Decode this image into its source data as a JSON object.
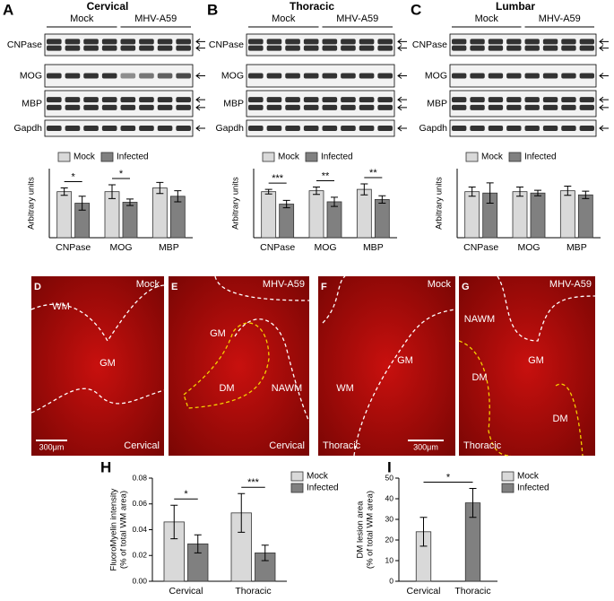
{
  "chart_data": [
    {
      "type": "bar",
      "panel": "A",
      "title": "Cervical",
      "ylabel": [
        "Arbitrary units"
      ],
      "categories": [
        "CNPase",
        "MOG",
        "MBP"
      ],
      "ylim": [
        0,
        1.5
      ],
      "legend": "top",
      "series": [
        {
          "name": "Mock",
          "color": "#d9d9d9",
          "values": [
            1.0,
            1.0,
            1.08
          ],
          "errors": [
            0.08,
            0.15,
            0.12
          ]
        },
        {
          "name": "Infected",
          "color": "#808080",
          "values": [
            0.75,
            0.77,
            0.9
          ],
          "errors": [
            0.15,
            0.07,
            0.12
          ]
        }
      ],
      "annotations": [
        {
          "text": "*",
          "category": "CNPase"
        },
        {
          "text": "*",
          "category": "MOG"
        }
      ]
    },
    {
      "type": "bar",
      "panel": "B",
      "title": "Thoracic",
      "ylabel": [
        "Arbitrary units"
      ],
      "categories": [
        "CNPase",
        "MOG",
        "MBP"
      ],
      "ylim": [
        0,
        1.5
      ],
      "legend": "top",
      "series": [
        {
          "name": "Mock",
          "color": "#d9d9d9",
          "values": [
            1.0,
            1.02,
            1.05
          ],
          "errors": [
            0.05,
            0.08,
            0.12
          ]
        },
        {
          "name": "Infected",
          "color": "#808080",
          "values": [
            0.73,
            0.78,
            0.83
          ],
          "errors": [
            0.08,
            0.1,
            0.08
          ]
        }
      ],
      "annotations": [
        {
          "text": "***",
          "category": "CNPase"
        },
        {
          "text": "**",
          "category": "MOG"
        },
        {
          "text": "**",
          "category": "MBP"
        }
      ]
    },
    {
      "type": "bar",
      "panel": "C",
      "title": "Lumbar",
      "ylabel": [
        "Arbitrary units"
      ],
      "categories": [
        "CNPase",
        "MOG",
        "MBP"
      ],
      "ylim": [
        0,
        1.5
      ],
      "legend": "top",
      "series": [
        {
          "name": "Mock",
          "color": "#d9d9d9",
          "values": [
            1.0,
            1.0,
            1.02
          ],
          "errors": [
            0.1,
            0.1,
            0.1
          ]
        },
        {
          "name": "Infected",
          "color": "#808080",
          "values": [
            0.97,
            0.97,
            0.93
          ],
          "errors": [
            0.22,
            0.06,
            0.08
          ]
        }
      ],
      "annotations": []
    },
    {
      "type": "bar",
      "panel": "H",
      "ylabel": [
        "FluoroMyelin intensity",
        "(% of total WM area)"
      ],
      "categories": [
        "Cervical",
        "Thoracic"
      ],
      "ylim": [
        0,
        0.08
      ],
      "yticks": [
        {
          "value": 0,
          "label": "0.00"
        },
        {
          "value": 0.02,
          "label": "0.02"
        },
        {
          "value": 0.04,
          "label": "0.04"
        },
        {
          "value": 0.06,
          "label": "0.06"
        },
        {
          "value": 0.08,
          "label": "0.08"
        }
      ],
      "legend": "right",
      "series": [
        {
          "name": "Mock",
          "color": "#d9d9d9",
          "values": [
            0.046,
            0.053
          ],
          "errors": [
            0.013,
            0.015
          ]
        },
        {
          "name": "Infected",
          "color": "#808080",
          "values": [
            0.029,
            0.022
          ],
          "errors": [
            0.007,
            0.006
          ]
        }
      ],
      "annotations": [
        {
          "text": "*",
          "category": "Cervical"
        },
        {
          "text": "***",
          "category": "Thoracic"
        }
      ]
    },
    {
      "type": "bar",
      "panel": "I",
      "ylabel": [
        "DM lesion area",
        "(% of total WM area)"
      ],
      "categories": [
        "Cervical",
        "Thoracic"
      ],
      "ylim": [
        0,
        50
      ],
      "yticks": [
        0,
        10,
        20,
        30,
        40,
        50
      ],
      "legend": "right",
      "series": [
        {
          "name": "Mock",
          "color": "#d9d9d9",
          "values": [
            24,
            null
          ],
          "errors": [
            7,
            null
          ]
        },
        {
          "name": "Infected",
          "color": "#808080",
          "values": [
            null,
            38
          ],
          "errors": [
            null,
            7
          ]
        }
      ],
      "annotations": [
        {
          "text": "*"
        }
      ]
    }
  ],
  "blots": [
    {
      "groups": [
        "Mock",
        "MHV-A59"
      ],
      "proteins": [
        "CNPase",
        "MOG",
        "MBP",
        "Gapdh"
      ]
    },
    {
      "groups": [
        "Mock",
        "MHV-A59"
      ],
      "proteins": [
        "CNPase",
        "MOG",
        "MBP",
        "Gapdh"
      ]
    },
    {
      "groups": [
        "Mock",
        "MHV-A59"
      ],
      "proteins": [
        "CNPase",
        "MOG",
        "MBP",
        "Gapdh"
      ]
    }
  ],
  "images": [
    {
      "panel": "D",
      "labels": [
        "Mock",
        "WM",
        "GM",
        "Cervical"
      ],
      "scale": "300μm"
    },
    {
      "panel": "E",
      "labels": [
        "MHV-A59",
        "GM",
        "DM",
        "NAWM",
        "Cervical"
      ]
    },
    {
      "panel": "F",
      "labels": [
        "Mock",
        "GM",
        "WM",
        "Thoracic"
      ],
      "scale": "300μm"
    },
    {
      "panel": "G",
      "labels": [
        "MHV-A59",
        "NAWM",
        "GM",
        "DM",
        "DM",
        "Thoracic"
      ]
    }
  ]
}
